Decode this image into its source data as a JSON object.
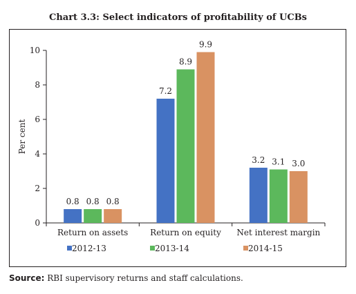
{
  "title": "Chart 3.3: Select indicators of profitability of UCBs",
  "source_label": "Source:",
  "source_text": " RBI supervisory returns and staff calculations.",
  "chart_data": {
    "type": "bar",
    "categories": [
      "Return on assets",
      "Return on equity",
      "Net interest margin"
    ],
    "series": [
      {
        "name": "2012-13",
        "values": [
          0.8,
          7.2,
          3.2
        ],
        "labels": [
          "0.8",
          "7.2",
          "3.2"
        ],
        "color": "#4472c4"
      },
      {
        "name": "2013-14",
        "values": [
          0.8,
          8.9,
          3.1
        ],
        "labels": [
          "0.8",
          "8.9",
          "3.1"
        ],
        "color": "#5cb85c"
      },
      {
        "name": "2014-15",
        "values": [
          0.8,
          9.9,
          3.0
        ],
        "labels": [
          "0.8",
          "9.9",
          "3.0"
        ],
        "color": "#d99262"
      }
    ],
    "ylabel": "Per cent",
    "xlabel": "",
    "ylim": [
      0,
      10
    ],
    "yticks": [
      "0",
      "2",
      "4",
      "6",
      "8",
      "10"
    ],
    "grid": false,
    "legend_position": "bottom"
  }
}
